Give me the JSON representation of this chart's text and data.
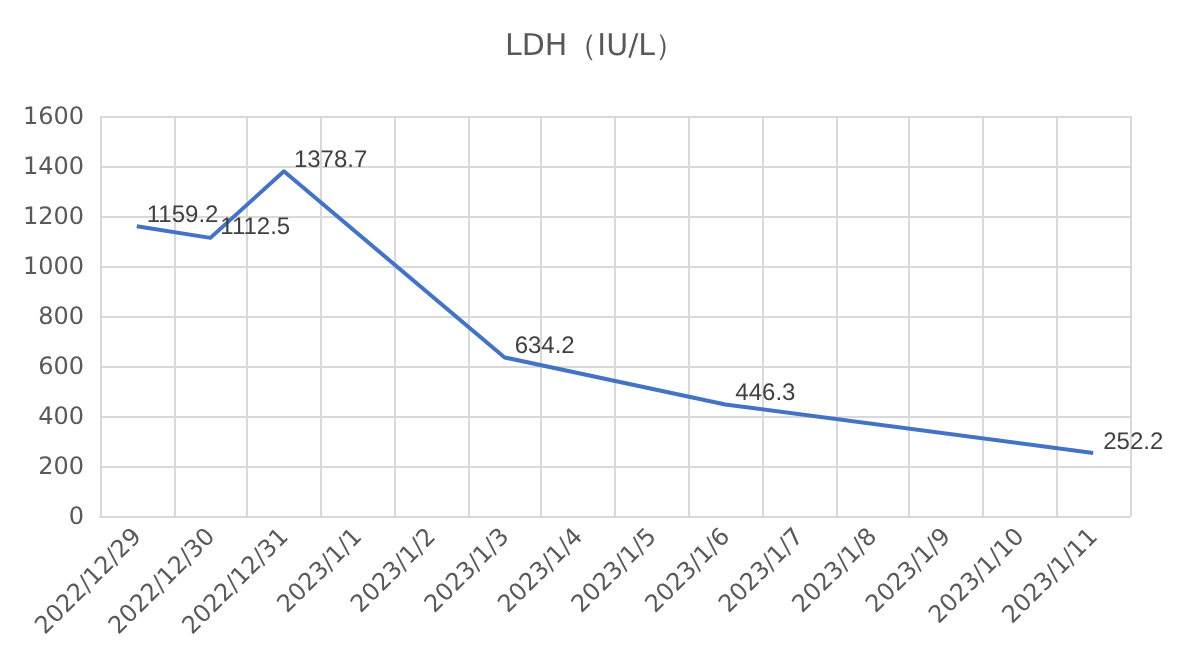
{
  "chart_data": {
    "type": "line",
    "title": "LDH（IU/L）",
    "categories": [
      "2022/12/29",
      "2022/12/30",
      "2022/12/31",
      "2023/1/1",
      "2023/1/2",
      "2023/1/3",
      "2023/1/4",
      "2023/1/5",
      "2023/1/6",
      "2023/1/7",
      "2023/1/8",
      "2023/1/9",
      "2023/1/10",
      "2023/1/11"
    ],
    "series": [
      {
        "color": "#4472c4",
        "x": [
          "2022/12/29",
          "2022/12/30",
          "2022/12/31",
          "2023/1/3",
          "2023/1/6",
          "2023/1/11"
        ],
        "values": [
          1159.2,
          1112.5,
          1378.7,
          634.2,
          446.3,
          252.2
        ]
      }
    ],
    "ylim": [
      0,
      1600
    ],
    "yticks": [
      0,
      200,
      400,
      600,
      800,
      1000,
      1200,
      1400,
      1600
    ],
    "grid": true,
    "data_labels": true,
    "marker": "none",
    "line_style": "solid"
  }
}
